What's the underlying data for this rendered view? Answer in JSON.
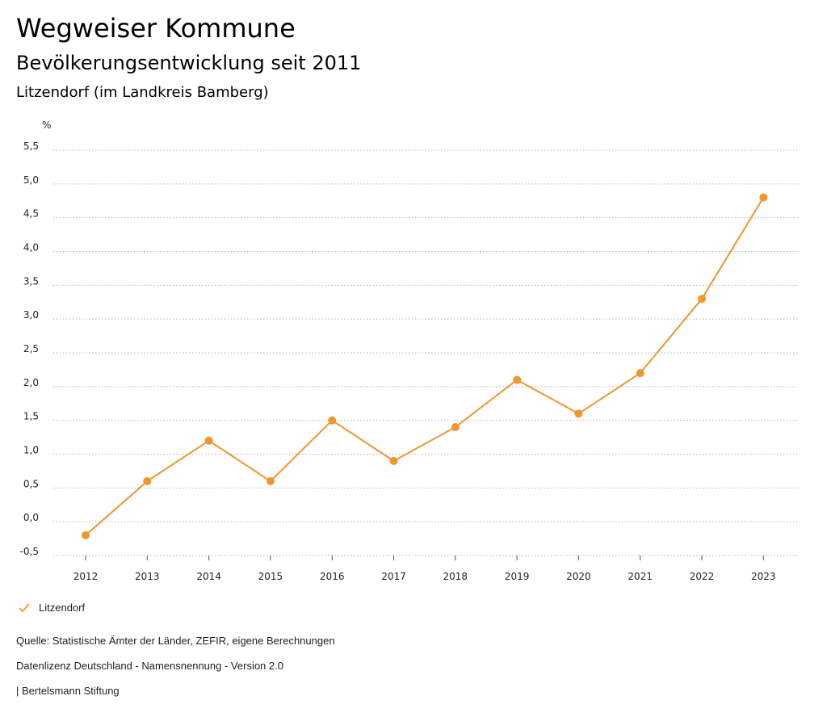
{
  "header": {
    "title": "Wegweiser Kommune",
    "subtitle": "Bevölkerungsentwicklung seit 2011",
    "region": "Litzendorf (im Landkreis Bamberg)"
  },
  "colors": {
    "series": "#F0962E",
    "grid": "#b5b5b5"
  },
  "chart_data": {
    "type": "line",
    "title": "Bevölkerungsentwicklung seit 2011",
    "ylabel": "%",
    "xlabel": "",
    "ylim": [
      -0.5,
      5.5
    ],
    "yticks": [
      "5,5",
      "5,0",
      "4,5",
      "4,0",
      "3,5",
      "3,0",
      "2,5",
      "2,0",
      "1,5",
      "1,0",
      "0,5",
      "0,0",
      "-0,5"
    ],
    "ytick_values": [
      5.5,
      5.0,
      4.5,
      4.0,
      3.5,
      3.0,
      2.5,
      2.0,
      1.5,
      1.0,
      0.5,
      0.0,
      -0.5
    ],
    "x": [
      "2012",
      "2013",
      "2014",
      "2015",
      "2016",
      "2017",
      "2018",
      "2019",
      "2020",
      "2021",
      "2022",
      "2023"
    ],
    "series": [
      {
        "name": "Litzendorf",
        "values": [
          -0.2,
          0.6,
          1.2,
          0.6,
          1.5,
          0.9,
          1.4,
          2.1,
          1.6,
          2.2,
          3.3,
          4.8
        ]
      }
    ],
    "grid": true,
    "legend": "bottom-left"
  },
  "legend": {
    "label": "Litzendorf",
    "icon": "check-icon"
  },
  "footer": {
    "source": "Quelle: Statistische Ämter der Länder, ZEFIR, eigene Berechnungen",
    "license": "Datenlizenz Deutschland - Namensnennung - Version 2.0",
    "publisher": "| Bertelsmann Stiftung"
  }
}
